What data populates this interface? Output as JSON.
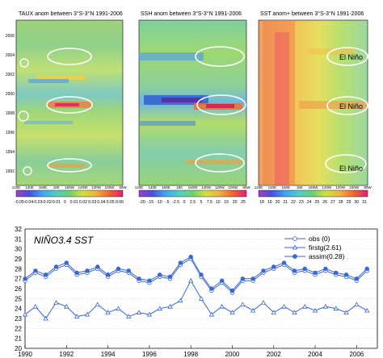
{
  "panels": [
    {
      "title": "TAUX anom between 3°S-3°N 1991-2006",
      "xticks": [
        "120E",
        "140E",
        "160E",
        "180",
        "160W",
        "140W",
        "120W",
        "100W",
        "80W"
      ],
      "yticks": [
        "1992",
        "1994",
        "1996",
        "1998",
        "2000",
        "2002",
        "2004",
        "2006"
      ],
      "colorbar": [
        "-0.05",
        "-0.04",
        "-0.03",
        "-0.02",
        "-0.01",
        "0",
        "0.01",
        "0.02",
        "0.03",
        "0.04",
        "0.05",
        "0.06"
      ],
      "annotations": []
    },
    {
      "title": "SSH anom between 3°S-3°N 1991-2006",
      "xticks": [
        "120E",
        "140E",
        "160E",
        "180",
        "160W",
        "140W",
        "120W",
        "100W",
        "80W"
      ],
      "yticks": [
        "1992",
        "1994",
        "1996",
        "1998",
        "2000",
        "2002",
        "2004",
        "2006"
      ],
      "colorbar": [
        "-20",
        "-15",
        "-10",
        "-5",
        "-2.5",
        "0",
        "2.5",
        "5",
        "7.5",
        "10",
        "15",
        "20",
        "25"
      ],
      "annotations": []
    },
    {
      "title": "SST anom+ between 3°S-3°N 1991-2006",
      "xticks": [
        "120E",
        "140E",
        "160E",
        "180",
        "160W",
        "140W",
        "120W",
        "100W",
        "80W"
      ],
      "yticks": [
        "1992",
        "1994",
        "1996",
        "1998",
        "2000",
        "2002",
        "2004",
        "2006"
      ],
      "colorbar": [
        "18",
        "19",
        "20",
        "21",
        "22",
        "23",
        "24",
        "25",
        "26",
        "27",
        "28",
        "29",
        "30",
        "31"
      ],
      "annotations": [
        "El Niño",
        "El Niño",
        "El Niño"
      ]
    }
  ],
  "chart_data": {
    "type": "line",
    "title": "NIÑO3.4 SST",
    "xlabel": "",
    "ylabel": "",
    "xlim": [
      1990,
      2007
    ],
    "ylim": [
      20,
      32
    ],
    "xticks": [
      "1990",
      "1992",
      "1994",
      "1996",
      "1998",
      "2000",
      "2002",
      "2004",
      "2006"
    ],
    "yticks": [
      "20",
      "21",
      "22",
      "23",
      "24",
      "25",
      "26",
      "27",
      "28",
      "29",
      "30",
      "31",
      "32"
    ],
    "legend_position": "top-right",
    "series": [
      {
        "name": "obs (0)",
        "color": "#3a66d6",
        "marker": "open-circle",
        "x": [
          1990.0,
          1990.5,
          1991.0,
          1991.5,
          1992.0,
          1992.5,
          1993.0,
          1993.5,
          1994.0,
          1994.5,
          1995.0,
          1995.5,
          1996.0,
          1996.5,
          1997.0,
          1997.5,
          1998.0,
          1998.5,
          1999.0,
          1999.5,
          2000.0,
          2000.5,
          2001.0,
          2001.5,
          2002.0,
          2002.5,
          2003.0,
          2003.5,
          2004.0,
          2004.5,
          2005.0,
          2005.5,
          2006.0,
          2006.5
        ],
        "y": [
          26.8,
          27.6,
          27.2,
          28.0,
          28.4,
          27.4,
          27.6,
          28.0,
          27.2,
          27.8,
          27.6,
          26.8,
          26.6,
          27.2,
          27.0,
          28.4,
          29.0,
          27.2,
          25.8,
          26.6,
          25.6,
          26.8,
          26.8,
          27.6,
          28.0,
          28.4,
          27.6,
          27.8,
          27.4,
          27.8,
          27.4,
          27.2,
          26.8,
          27.8
        ]
      },
      {
        "name": "firstg(2.61)",
        "color": "#3a66d6",
        "marker": "open-triangle",
        "x": [
          1990.0,
          1990.5,
          1991.0,
          1991.5,
          1992.0,
          1992.5,
          1993.0,
          1993.5,
          1994.0,
          1994.5,
          1995.0,
          1995.5,
          1996.0,
          1996.5,
          1997.0,
          1997.5,
          1998.0,
          1998.5,
          1999.0,
          1999.5,
          2000.0,
          2000.5,
          2001.0,
          2001.5,
          2002.0,
          2002.5,
          2003.0,
          2003.5,
          2004.0,
          2004.5,
          2005.0,
          2005.5,
          2006.0,
          2006.5
        ],
        "y": [
          23.4,
          24.2,
          23.0,
          24.6,
          24.2,
          23.2,
          23.4,
          24.4,
          23.6,
          24.0,
          23.2,
          23.6,
          23.4,
          24.0,
          24.2,
          24.8,
          26.8,
          25.0,
          23.4,
          24.2,
          23.6,
          24.4,
          23.8,
          24.6,
          23.6,
          24.2,
          23.6,
          24.2,
          23.8,
          24.2,
          24.0,
          23.6,
          24.4,
          23.8
        ]
      },
      {
        "name": "assim(0.28)",
        "color": "#3a66d6",
        "marker": "filled-circle",
        "x": [
          1990.0,
          1990.5,
          1991.0,
          1991.5,
          1992.0,
          1992.5,
          1993.0,
          1993.5,
          1994.0,
          1994.5,
          1995.0,
          1995.5,
          1996.0,
          1996.5,
          1997.0,
          1997.5,
          1998.0,
          1998.5,
          1999.0,
          1999.5,
          2000.0,
          2000.5,
          2001.0,
          2001.5,
          2002.0,
          2002.5,
          2003.0,
          2003.5,
          2004.0,
          2004.5,
          2005.0,
          2005.5,
          2006.0,
          2006.5
        ],
        "y": [
          27.0,
          27.8,
          27.4,
          28.2,
          28.6,
          27.6,
          27.8,
          28.2,
          27.4,
          28.0,
          27.8,
          27.0,
          26.8,
          27.4,
          27.2,
          28.6,
          29.2,
          27.4,
          26.0,
          26.8,
          25.8,
          27.0,
          27.0,
          27.8,
          28.2,
          28.6,
          27.8,
          28.0,
          27.6,
          28.0,
          27.6,
          27.4,
          27.0,
          28.0
        ]
      }
    ]
  }
}
